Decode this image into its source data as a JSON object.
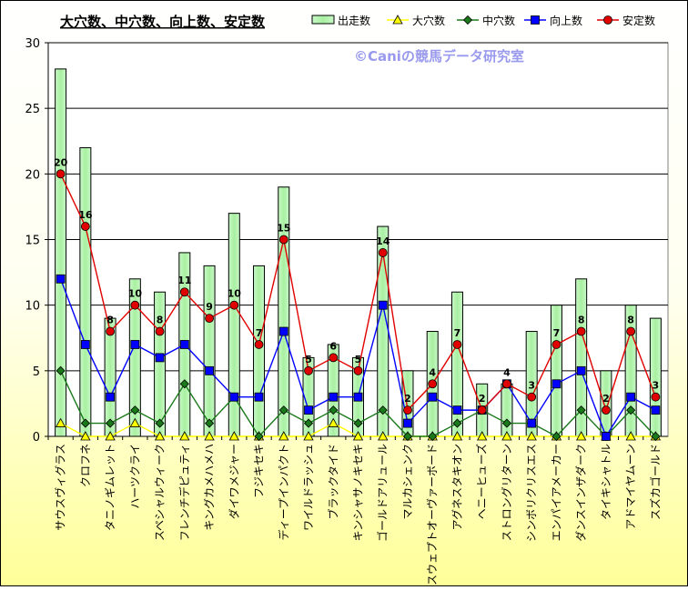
{
  "chart_data": {
    "type": "bar",
    "title": "大穴数、中穴数、向上数、安定数",
    "watermark": "©Caniの競馬データ研究室",
    "ylim": [
      0,
      30
    ],
    "yticks": [
      0,
      5,
      10,
      15,
      20,
      25,
      30
    ],
    "grid": true,
    "legend_position": "top-right",
    "categories": [
      "サウスヴィグラス",
      "クロフネ",
      "タニノギムレット",
      "ハーツクライ",
      "スペシャルウィーク",
      "フレンチデピュティ",
      "キングカメハメハ",
      "ダイワメジャー",
      "フジキセキ",
      "ディープインパクト",
      "ワイルドラッシュ",
      "ブラックタイド",
      "キンシャサノキセキ",
      "ゴールドアリュール",
      "マルカシェンク",
      "スウェプトオーヴァーボード",
      "アグネスタキオン",
      "ヘニーヒューズ",
      "ストロングリターン",
      "シンボリクリスエス",
      "エンパイアメーカー",
      "ダンスインザダーク",
      "タイキシャトル",
      "アドマイヤムーン",
      "スズカゴールド"
    ],
    "series": [
      {
        "name": "出走数",
        "kind": "bar",
        "color": "#8ee88e",
        "values": [
          28,
          22,
          9,
          12,
          11,
          14,
          13,
          17,
          13,
          19,
          6,
          7,
          6,
          16,
          5,
          8,
          11,
          4,
          4,
          8,
          10,
          12,
          5,
          10,
          9
        ]
      },
      {
        "name": "大穴数",
        "kind": "line",
        "marker": "triangle",
        "color": "#ffff00",
        "values": [
          1,
          0,
          0,
          1,
          0,
          0,
          0,
          0,
          0,
          0,
          0,
          1,
          0,
          0,
          0,
          0,
          0,
          0,
          0,
          0,
          0,
          0,
          0,
          0,
          0
        ]
      },
      {
        "name": "中穴数",
        "kind": "line",
        "marker": "diamond",
        "color": "#1a7a1a",
        "values": [
          5,
          1,
          1,
          2,
          1,
          4,
          1,
          3,
          0,
          2,
          1,
          2,
          1,
          2,
          0,
          0,
          1,
          2,
          1,
          1,
          0,
          2,
          0,
          2,
          0
        ]
      },
      {
        "name": "向上数",
        "kind": "line",
        "marker": "square",
        "color": "#0000ff",
        "values": [
          12,
          7,
          3,
          7,
          6,
          7,
          5,
          3,
          3,
          8,
          2,
          3,
          3,
          10,
          1,
          3,
          2,
          2,
          4,
          1,
          4,
          5,
          0,
          3,
          2
        ]
      },
      {
        "name": "安定数",
        "kind": "line",
        "marker": "circle",
        "color": "#e00000",
        "values": [
          20,
          16,
          8,
          10,
          8,
          11,
          9,
          10,
          7,
          15,
          5,
          6,
          5,
          14,
          2,
          4,
          7,
          2,
          4,
          3,
          7,
          8,
          2,
          8,
          3
        ],
        "labels": true
      }
    ]
  }
}
